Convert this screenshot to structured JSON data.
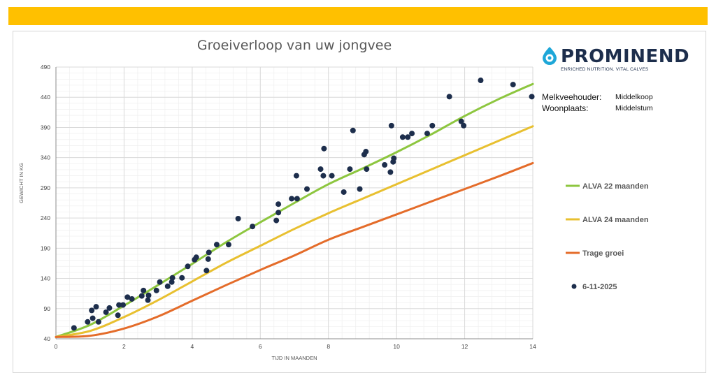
{
  "colors": {
    "topbar": "#ffc000",
    "green": "#8dc63f",
    "yellow": "#e8c030",
    "orange": "#e46c2a",
    "dots": "#1d2e4c"
  },
  "logo": {
    "name": "PROMINEND",
    "tagline": "ENRICHED NUTRITION. VITAL CALVES"
  },
  "info": {
    "farmer_label": "Melkveehouder:",
    "farmer_value": "Middelkoop",
    "place_label": "Woonplaats:",
    "place_value": "Middelstum"
  },
  "chart_data": {
    "type": "scatter",
    "title": "Groeiverloop van uw jongvee",
    "xlabel": "TIJD IN MAANDEN",
    "ylabel": "GEWICHT IN KG",
    "xlim": [
      0,
      14
    ],
    "ylim": [
      40,
      490
    ],
    "xticks": [
      0,
      2,
      4,
      6,
      8,
      10,
      12,
      14
    ],
    "yticks": [
      40,
      90,
      140,
      190,
      240,
      290,
      340,
      390,
      440,
      490
    ],
    "grid": true,
    "legend_position": "right",
    "series": [
      {
        "name": "ALVA 22 maanden",
        "kind": "line",
        "color": "#8dc63f",
        "x": [
          0,
          1,
          2,
          3,
          4,
          5,
          6,
          7,
          8,
          9,
          10,
          11,
          12,
          13,
          14
        ],
        "y": [
          43,
          63,
          95,
          129,
          164,
          200,
          233,
          265,
          296,
          322,
          349,
          378,
          409,
          437,
          462
        ]
      },
      {
        "name": "ALVA 24 maanden",
        "kind": "line",
        "color": "#e8c030",
        "x": [
          0,
          1,
          2,
          3,
          4,
          5,
          6,
          7,
          8,
          9,
          10,
          11,
          12,
          13,
          14
        ],
        "y": [
          43,
          53,
          76,
          104,
          135,
          166,
          194,
          222,
          248,
          272,
          296,
          320,
          344,
          368,
          392
        ]
      },
      {
        "name": "Trage groei",
        "kind": "line",
        "color": "#e46c2a",
        "x": [
          0,
          1,
          2,
          3,
          4,
          5,
          6,
          7,
          8,
          9,
          10,
          11,
          12,
          13,
          14
        ],
        "y": [
          43,
          45,
          57,
          77,
          103,
          129,
          154,
          178,
          204,
          225,
          246,
          267,
          288,
          309,
          331
        ]
      },
      {
        "name": "6-11-2025",
        "kind": "scatter",
        "color": "#1d2e4c",
        "points": [
          [
            0.53,
            58
          ],
          [
            0.93,
            68
          ],
          [
            1.05,
            87
          ],
          [
            1.08,
            74
          ],
          [
            1.18,
            93
          ],
          [
            1.25,
            68
          ],
          [
            1.47,
            84
          ],
          [
            1.57,
            91
          ],
          [
            1.82,
            79
          ],
          [
            1.85,
            96
          ],
          [
            1.97,
            96
          ],
          [
            2.1,
            109
          ],
          [
            2.23,
            106
          ],
          [
            2.52,
            111
          ],
          [
            2.57,
            120
          ],
          [
            2.7,
            104
          ],
          [
            2.72,
            112
          ],
          [
            2.95,
            120
          ],
          [
            3.05,
            134
          ],
          [
            3.28,
            127
          ],
          [
            3.4,
            134
          ],
          [
            3.42,
            141
          ],
          [
            3.7,
            141
          ],
          [
            3.87,
            160
          ],
          [
            4.07,
            171
          ],
          [
            4.12,
            175
          ],
          [
            4.42,
            153
          ],
          [
            4.47,
            172
          ],
          [
            4.49,
            183
          ],
          [
            4.72,
            196
          ],
          [
            5.07,
            196
          ],
          [
            5.35,
            239
          ],
          [
            5.77,
            226
          ],
          [
            6.47,
            236
          ],
          [
            6.53,
            249
          ],
          [
            6.53,
            263
          ],
          [
            6.92,
            272
          ],
          [
            7.06,
            310
          ],
          [
            7.08,
            272
          ],
          [
            7.37,
            288
          ],
          [
            7.77,
            321
          ],
          [
            7.85,
            310
          ],
          [
            7.87,
            355
          ],
          [
            8.1,
            310
          ],
          [
            8.45,
            283
          ],
          [
            8.63,
            321
          ],
          [
            8.72,
            385
          ],
          [
            8.92,
            288
          ],
          [
            9.05,
            345
          ],
          [
            9.1,
            350
          ],
          [
            9.12,
            321
          ],
          [
            9.65,
            328
          ],
          [
            9.82,
            316
          ],
          [
            9.85,
            393
          ],
          [
            9.9,
            333
          ],
          [
            9.92,
            339
          ],
          [
            10.18,
            374
          ],
          [
            10.33,
            374
          ],
          [
            10.45,
            380
          ],
          [
            10.9,
            380
          ],
          [
            11.05,
            393
          ],
          [
            11.55,
            441
          ],
          [
            11.9,
            400
          ],
          [
            11.97,
            393
          ],
          [
            12.47,
            468
          ],
          [
            13.42,
            461
          ],
          [
            13.97,
            441
          ]
        ]
      }
    ]
  }
}
